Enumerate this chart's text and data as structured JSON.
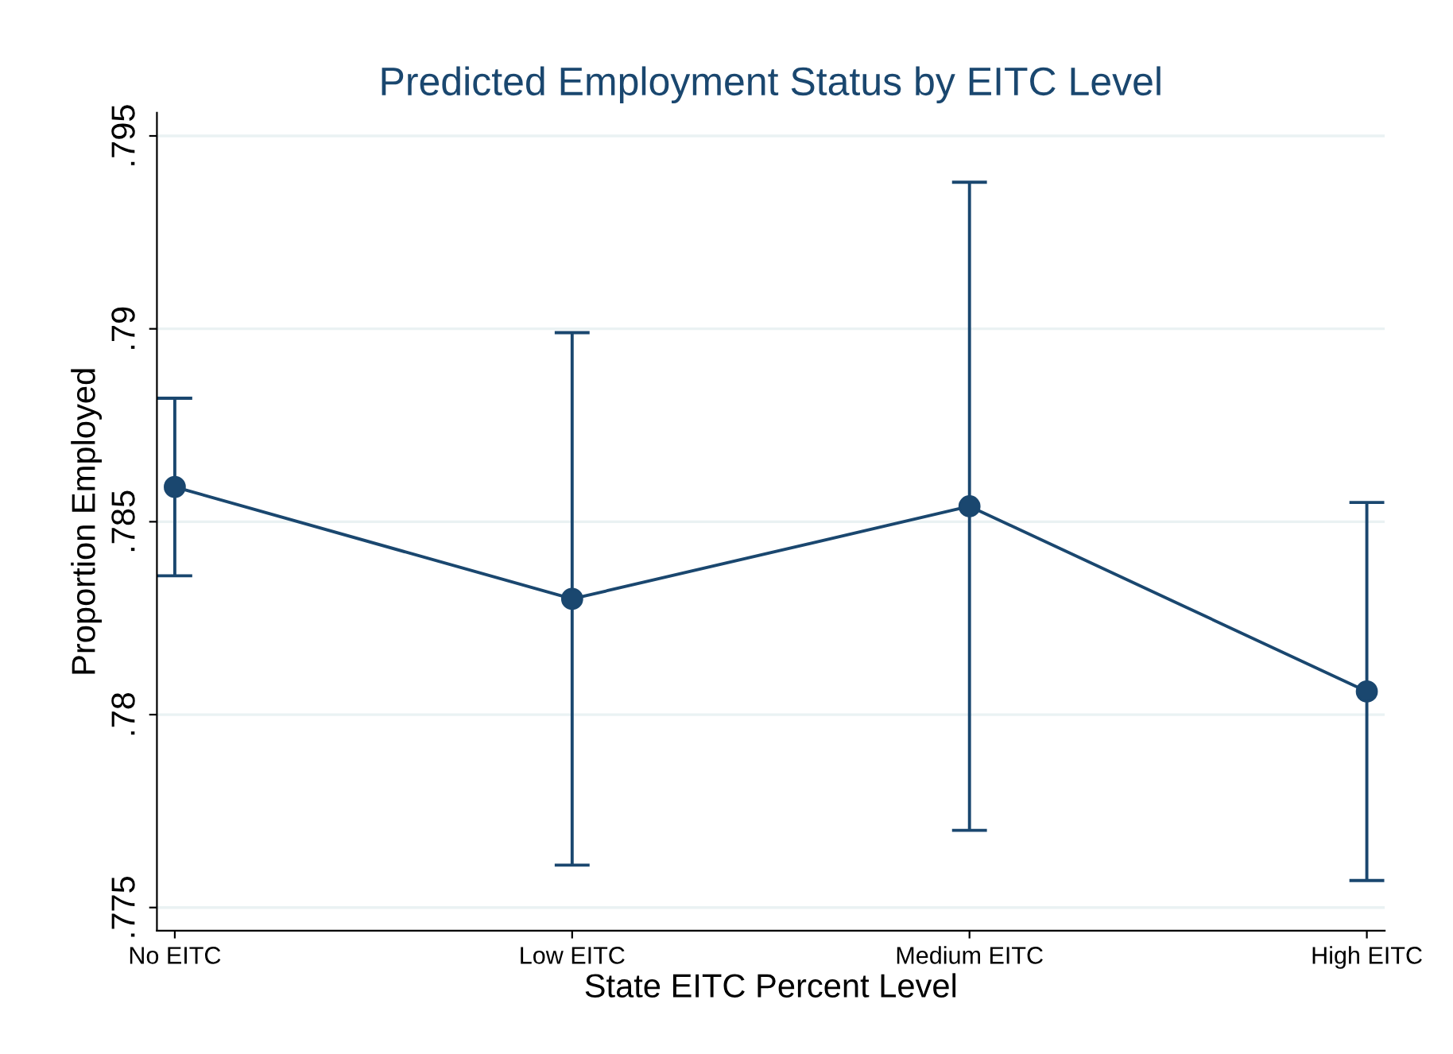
{
  "chart_data": {
    "type": "line",
    "title": "Predicted Employment Status by EITC Level",
    "xlabel": "State EITC Percent Level",
    "ylabel": "Proportion Employed",
    "categories": [
      "No EITC",
      "Low EITC",
      "Medium EITC",
      "High EITC"
    ],
    "values": [
      0.7859,
      0.783,
      0.7854,
      0.7806
    ],
    "errors": [
      [
        0.7836,
        0.7882
      ],
      [
        0.7761,
        0.7899
      ],
      [
        0.777,
        0.7938
      ],
      [
        0.7757,
        0.7855
      ]
    ],
    "color": "#1a476f",
    "marker": "circle",
    "line_style": "solid",
    "ylim": [
      0.7744,
      0.7956
    ],
    "yticks": [
      {
        "value": 0.775,
        "label": ".775"
      },
      {
        "value": 0.78,
        "label": ".78"
      },
      {
        "value": 0.785,
        "label": ".785"
      },
      {
        "value": 0.79,
        "label": ".79"
      },
      {
        "value": 0.795,
        "label": ".795"
      }
    ],
    "grid": "y",
    "legend": false
  }
}
